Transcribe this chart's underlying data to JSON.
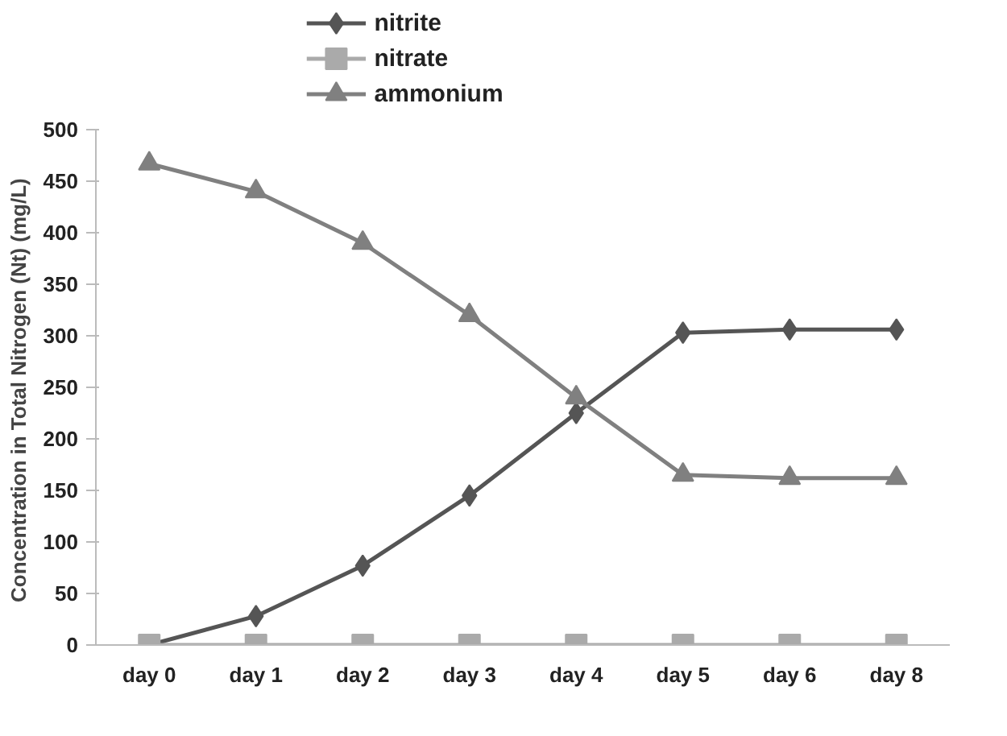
{
  "chart_data": {
    "type": "line",
    "ylabel": "Concentration in Total Nitrogen (Nt)  (mg/L)",
    "categories": [
      "day 0",
      "day 1",
      "day 2",
      "day 3",
      "day 4",
      "day 5",
      "day 6",
      "day 8"
    ],
    "series": [
      {
        "name": "nitrite",
        "color": "#555555",
        "marker": "diamond",
        "values": [
          0,
          28,
          77,
          145,
          225,
          303,
          306,
          306
        ]
      },
      {
        "name": "nitrate",
        "color": "#aaaaaa",
        "marker": "square",
        "values": [
          0,
          0,
          0,
          0,
          0,
          0,
          0,
          0
        ]
      },
      {
        "name": "ammonium",
        "color": "#808080",
        "marker": "triangle",
        "values": [
          467,
          440,
          390,
          320,
          240,
          165,
          162,
          162
        ]
      }
    ],
    "ylim": [
      0,
      500
    ],
    "yticks": [
      0,
      50,
      100,
      150,
      200,
      250,
      300,
      350,
      400,
      450,
      500
    ],
    "grid": false,
    "legend": "top",
    "line_style": "solid"
  }
}
